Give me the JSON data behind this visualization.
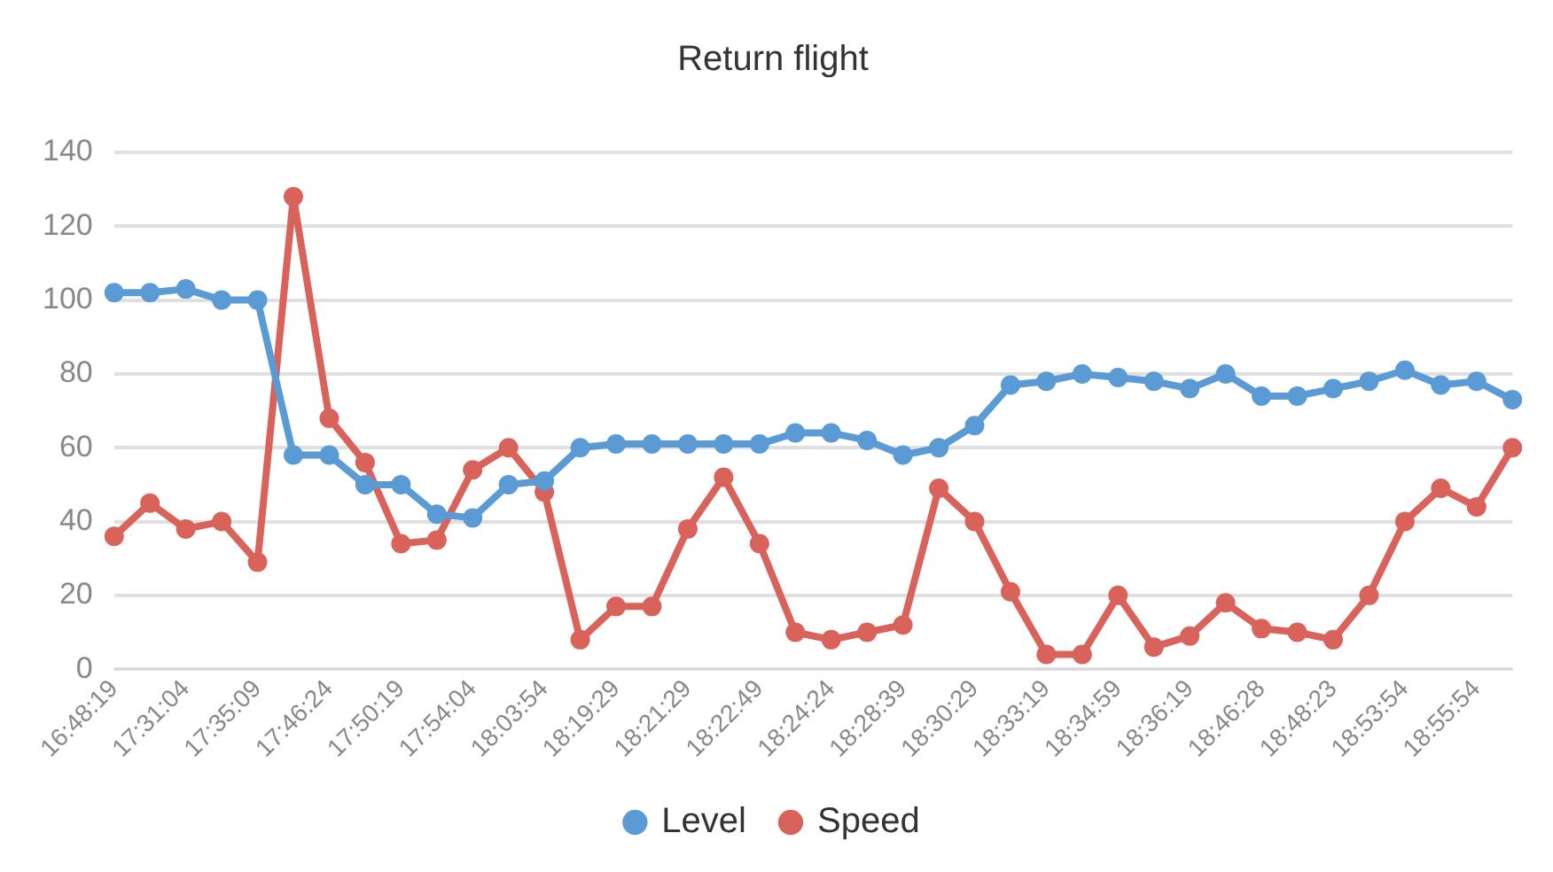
{
  "chart_data": {
    "type": "line",
    "title": "Return flight",
    "categories": [
      "16:48:19",
      null,
      "17:31:04",
      null,
      "17:35:09",
      null,
      "17:46:24",
      null,
      "17:50:19",
      null,
      "17:54:04",
      null,
      "18:03:54",
      null,
      "18:19:29",
      null,
      "18:21:29",
      null,
      "18:22:49",
      null,
      "18:24:24",
      null,
      "18:28:39",
      null,
      "18:30:29",
      null,
      "18:33:19",
      null,
      "18:34:59",
      null,
      "18:36:19",
      null,
      "18:46:28",
      null,
      "18:48:23",
      null,
      "18:53:54",
      null,
      "18:55:54",
      null
    ],
    "series": [
      {
        "name": "Level",
        "color": "#5b9bd5",
        "values": [
          102,
          102,
          103,
          100,
          100,
          58,
          58,
          50,
          50,
          42,
          41,
          50,
          51,
          60,
          61,
          61,
          61,
          61,
          61,
          64,
          64,
          62,
          58,
          60,
          66,
          77,
          78,
          80,
          79,
          78,
          76,
          80,
          74,
          74,
          76,
          78,
          81,
          77,
          78,
          73
        ]
      },
      {
        "name": "Speed",
        "color": "#d9625a",
        "values": [
          36,
          45,
          38,
          40,
          29,
          128,
          68,
          56,
          34,
          35,
          54,
          60,
          48,
          8,
          17,
          17,
          38,
          52,
          34,
          10,
          8,
          10,
          12,
          49,
          40,
          21,
          4,
          4,
          20,
          6,
          9,
          18,
          11,
          10,
          8,
          20,
          40,
          49,
          44,
          60
        ]
      }
    ],
    "ylim": [
      0,
      140
    ],
    "yticks": [
      0,
      20,
      40,
      60,
      80,
      100,
      120,
      140
    ],
    "grid": "y",
    "legend": "bottom",
    "marker": "circle",
    "line_style": "solid"
  }
}
